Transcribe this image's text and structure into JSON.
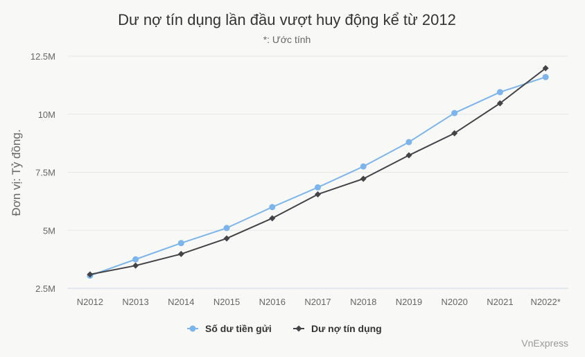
{
  "chart_data": {
    "type": "line",
    "title": "Dư nợ tín dụng lần đầu vượt huy động kể từ 2012",
    "subtitle": "*: Ước tính",
    "ylabel": "Đơn vị: Tỷ đồng.",
    "xlabel": "",
    "categories": [
      "N2012",
      "N2013",
      "N2014",
      "N2015",
      "N2016",
      "N2017",
      "N2018",
      "N2019",
      "N2020",
      "N2021",
      "N2022*"
    ],
    "y_ticks": [
      2500000,
      5000000,
      7500000,
      10000000,
      12500000
    ],
    "y_tick_labels": [
      "2.5M",
      "5M",
      "7.5M",
      "10M",
      "12.5M"
    ],
    "ylim": [
      2500000,
      12500000
    ],
    "grid": true,
    "legend_position": "bottom-center",
    "series": [
      {
        "name": "Số dư tiền gửi",
        "color": "#7cb5ec",
        "marker": "circle",
        "values": [
          3050000,
          3750000,
          4450000,
          5100000,
          6000000,
          6850000,
          7750000,
          8800000,
          10050000,
          10950000,
          11600000
        ]
      },
      {
        "name": "Dư nợ tín dụng",
        "color": "#434348",
        "marker": "diamond",
        "values": [
          3100000,
          3480000,
          3980000,
          4650000,
          5520000,
          6550000,
          7220000,
          8230000,
          9180000,
          10470000,
          11980000
        ]
      }
    ]
  },
  "credit": "VnExpress",
  "colors": {
    "background": "#f8f8f6",
    "grid": "#e6e6e6",
    "axis": "#ccd6eb"
  }
}
